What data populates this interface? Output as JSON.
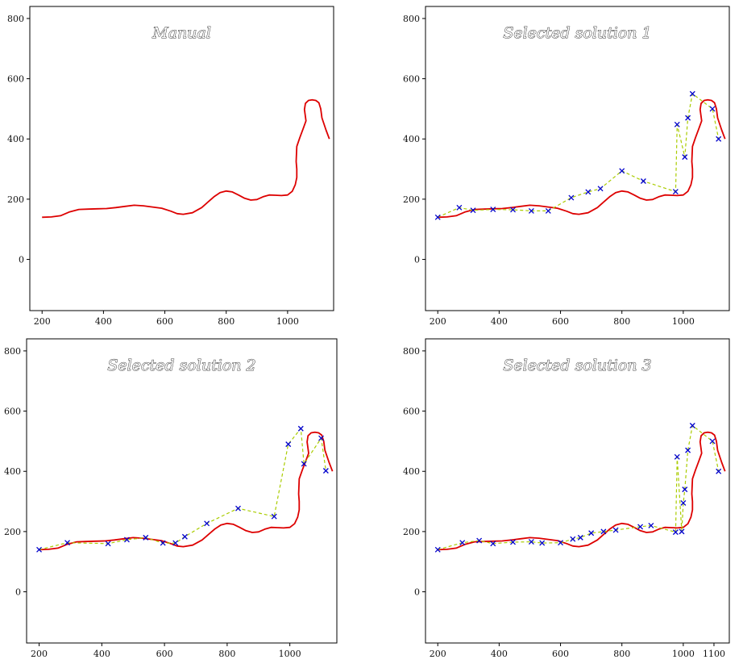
{
  "chart_data": [
    {
      "type": "line",
      "title": "Manual",
      "xlim": [
        160,
        1150
      ],
      "ylim": [
        -170,
        840
      ],
      "xticks": [
        200,
        400,
        600,
        800,
        1000
      ],
      "yticks": [
        0,
        200,
        400,
        600,
        800
      ],
      "curve_color": "#dd0000",
      "series": [
        {
          "role": "path",
          "x": [
            200,
            230,
            260,
            290,
            320,
            350,
            380,
            410,
            440,
            470,
            500,
            530,
            560,
            590,
            620,
            640,
            660,
            690,
            720,
            740,
            760,
            780,
            800,
            820,
            840,
            860,
            880,
            900,
            920,
            940,
            960,
            980,
            1000,
            1015,
            1025,
            1030,
            1030,
            1028,
            1030,
            1040,
            1050,
            1060,
            1055,
            1058,
            1068,
            1080,
            1092,
            1102,
            1108,
            1112,
            1125,
            1136
          ],
          "y": [
            140,
            141,
            145,
            158,
            166,
            167,
            168,
            169,
            172,
            176,
            180,
            178,
            174,
            170,
            160,
            152,
            150,
            155,
            172,
            190,
            208,
            222,
            227,
            224,
            214,
            203,
            197,
            199,
            208,
            214,
            213,
            212,
            214,
            226,
            248,
            272,
            300,
            325,
            375,
            405,
            432,
            460,
            498,
            518,
            528,
            530,
            528,
            520,
            500,
            470,
            430,
            400
          ]
        }
      ]
    },
    {
      "type": "line",
      "title": "Selected solution 1",
      "xlim": [
        160,
        1150
      ],
      "ylim": [
        -170,
        840
      ],
      "xticks": [
        200,
        400,
        600,
        800,
        1000
      ],
      "yticks": [
        0,
        200,
        400,
        600,
        800
      ],
      "curve_color": "#dd0000",
      "polyline_color": "#aacc00",
      "marker_color": "#0000cc",
      "series": [
        {
          "role": "path",
          "x": [
            200,
            230,
            260,
            290,
            320,
            350,
            380,
            410,
            440,
            470,
            500,
            530,
            560,
            590,
            620,
            640,
            660,
            690,
            720,
            740,
            760,
            780,
            800,
            820,
            840,
            860,
            880,
            900,
            920,
            940,
            960,
            980,
            1000,
            1015,
            1025,
            1030,
            1030,
            1028,
            1030,
            1040,
            1050,
            1060,
            1055,
            1058,
            1068,
            1080,
            1092,
            1102,
            1108,
            1112,
            1125,
            1136
          ],
          "y": [
            140,
            141,
            145,
            158,
            166,
            167,
            168,
            169,
            172,
            176,
            180,
            178,
            174,
            170,
            160,
            152,
            150,
            155,
            172,
            190,
            208,
            222,
            227,
            224,
            214,
            203,
            197,
            199,
            208,
            214,
            213,
            212,
            214,
            226,
            248,
            272,
            300,
            325,
            375,
            405,
            432,
            460,
            498,
            518,
            528,
            530,
            528,
            520,
            500,
            470,
            430,
            400
          ]
        },
        {
          "role": "control-points",
          "x": [
            200,
            270,
            315,
            380,
            445,
            505,
            560,
            635,
            690,
            730,
            800,
            870,
            975,
            980,
            1005,
            1015,
            1030,
            1095,
            1115
          ],
          "y": [
            140,
            172,
            163,
            166,
            165,
            161,
            161,
            205,
            224,
            235,
            294,
            260,
            225,
            448,
            340,
            470,
            550,
            500,
            400
          ]
        }
      ]
    },
    {
      "type": "line",
      "title": "Selected solution 2",
      "xlim": [
        160,
        1150
      ],
      "ylim": [
        -170,
        840
      ],
      "xticks": [
        200,
        400,
        600,
        800,
        1000
      ],
      "yticks": [
        0,
        200,
        400,
        600,
        800
      ],
      "curve_color": "#dd0000",
      "polyline_color": "#aacc00",
      "marker_color": "#0000cc",
      "series": [
        {
          "role": "path",
          "x": [
            200,
            230,
            260,
            290,
            320,
            350,
            380,
            410,
            440,
            470,
            500,
            530,
            560,
            590,
            620,
            640,
            660,
            690,
            720,
            740,
            760,
            780,
            800,
            820,
            840,
            860,
            880,
            900,
            920,
            940,
            960,
            980,
            1000,
            1015,
            1025,
            1030,
            1030,
            1028,
            1030,
            1040,
            1050,
            1060,
            1055,
            1058,
            1068,
            1080,
            1092,
            1102,
            1108,
            1112,
            1125,
            1136
          ],
          "y": [
            140,
            141,
            145,
            158,
            166,
            167,
            168,
            169,
            172,
            176,
            180,
            178,
            174,
            170,
            160,
            152,
            150,
            155,
            172,
            190,
            208,
            222,
            227,
            224,
            214,
            203,
            197,
            199,
            208,
            214,
            213,
            212,
            214,
            226,
            248,
            272,
            300,
            325,
            375,
            405,
            432,
            460,
            498,
            518,
            528,
            530,
            528,
            520,
            500,
            470,
            430,
            400
          ]
        },
        {
          "role": "control-points",
          "x": [
            200,
            290,
            420,
            480,
            540,
            595,
            635,
            665,
            735,
            835,
            950,
            995,
            1035,
            1045,
            1100,
            1115
          ],
          "y": [
            140,
            163,
            160,
            173,
            180,
            162,
            162,
            183,
            227,
            277,
            250,
            490,
            542,
            425,
            510,
            402
          ]
        }
      ]
    },
    {
      "type": "line",
      "title": "Selected solution 3",
      "xlim": [
        160,
        1150
      ],
      "ylim": [
        -170,
        840
      ],
      "xticks": [
        200,
        400,
        600,
        800,
        1000,
        1100
      ],
      "yticks": [
        0,
        200,
        400,
        600,
        800
      ],
      "curve_color": "#dd0000",
      "polyline_color": "#aacc00",
      "marker_color": "#0000cc",
      "series": [
        {
          "role": "path",
          "x": [
            200,
            230,
            260,
            290,
            320,
            350,
            380,
            410,
            440,
            470,
            500,
            530,
            560,
            590,
            620,
            640,
            660,
            690,
            720,
            740,
            760,
            780,
            800,
            820,
            840,
            860,
            880,
            900,
            920,
            940,
            960,
            980,
            1000,
            1015,
            1025,
            1030,
            1030,
            1028,
            1030,
            1040,
            1050,
            1060,
            1055,
            1058,
            1068,
            1080,
            1092,
            1102,
            1108,
            1112,
            1125,
            1136
          ],
          "y": [
            140,
            141,
            145,
            158,
            166,
            167,
            168,
            169,
            172,
            176,
            180,
            178,
            174,
            170,
            160,
            152,
            150,
            155,
            172,
            190,
            208,
            222,
            227,
            224,
            214,
            203,
            197,
            199,
            208,
            214,
            213,
            212,
            214,
            226,
            248,
            272,
            300,
            325,
            375,
            405,
            432,
            460,
            498,
            518,
            528,
            530,
            528,
            520,
            500,
            470,
            430,
            400
          ]
        },
        {
          "role": "control-points",
          "x": [
            200,
            280,
            335,
            380,
            445,
            505,
            540,
            600,
            640,
            665,
            700,
            740,
            780,
            860,
            895,
            975,
            980,
            995,
            1000,
            1005,
            1015,
            1030,
            1095,
            1115
          ],
          "y": [
            140,
            163,
            170,
            160,
            165,
            166,
            162,
            163,
            175,
            180,
            195,
            200,
            205,
            216,
            220,
            198,
            448,
            200,
            295,
            340,
            470,
            552,
            500,
            400
          ]
        }
      ]
    }
  ]
}
